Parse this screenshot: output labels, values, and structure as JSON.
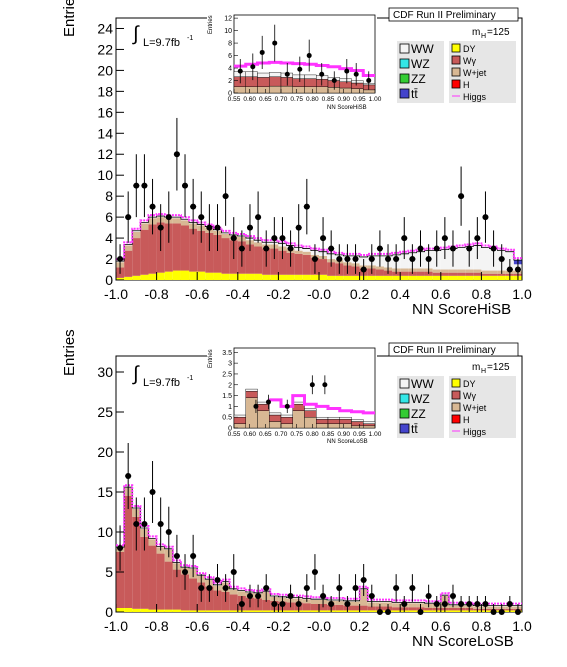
{
  "chart_data": [
    {
      "type": "bar",
      "title": "CDF Run II Preliminary",
      "xlabel": "NN ScoreHiSB",
      "ylabel": "Entries",
      "xlim": [
        -1.0,
        1.0
      ],
      "ylim": [
        0,
        25
      ],
      "yticks": [
        0,
        2,
        4,
        6,
        8,
        10,
        12,
        14,
        16,
        18,
        20,
        22,
        24
      ],
      "xticks": [
        -1.0,
        -0.8,
        -0.6,
        -0.4,
        -0.2,
        -0.0,
        0.2,
        0.4,
        0.6,
        0.8,
        1.0
      ],
      "xtick_labels": [
        "-1.0",
        "-0.8",
        "-0.6",
        "-0.4",
        "-0.2",
        "-0.0",
        "0.2",
        "0.4",
        "0.6",
        "0.8",
        "1.0"
      ],
      "lumi_label": "L=9.7fb",
      "lumi_sup": "-1",
      "mass_label": "m",
      "mass_sub": "H",
      "mass_value": "=125",
      "legend_position": "top-right",
      "legend": [
        {
          "name": "WW",
          "color": "#f4f4f4"
        },
        {
          "name": "WZ",
          "color": "#33e6e6"
        },
        {
          "name": "ZZ",
          "color": "#33cc33"
        },
        {
          "name": "tt̄",
          "color": "#4444cc"
        },
        {
          "name": "DY",
          "color": "#ffff00"
        },
        {
          "name": "Wγ",
          "color": "#c85a5a"
        },
        {
          "name": "W+jet",
          "color": "#d8b894"
        },
        {
          "name": "H",
          "color": "#ff0000"
        },
        {
          "name": "Higgs",
          "color": "#ff33ff"
        }
      ],
      "bin_edges": [
        -1.0,
        0.9625
      ],
      "bin_width": 0.04,
      "stack_colors": {
        "dy": "#ffff00",
        "wg": "#c85a5a",
        "wjet": "#d8b894",
        "ww": "#f4f4f4",
        "tt": "#4444cc"
      },
      "series": [
        {
          "name": "DY",
          "values": [
            0.2,
            0.3,
            0.4,
            0.5,
            0.6,
            0.7,
            0.8,
            0.9,
            0.9,
            0.8,
            0.8,
            0.7,
            0.7,
            0.6,
            0.6,
            0.6,
            0.6,
            0.6,
            0.5,
            0.5,
            0.5,
            0.5,
            0.5,
            0.5,
            0.5,
            0.5,
            0.4,
            0.4,
            0.4,
            0.4,
            0.4,
            0.4,
            0.4,
            0.4,
            0.4,
            0.4,
            0.4,
            0.4,
            0.4,
            0.4,
            0.4,
            0.4,
            0.4,
            0.4,
            0.4,
            0.4,
            0.4,
            0.4,
            0.4,
            0.4
          ]
        },
        {
          "name": "Wγ",
          "values": [
            1.0,
            2.5,
            3.6,
            4.3,
            4.7,
            4.8,
            4.6,
            4.5,
            4.3,
            4.1,
            3.9,
            3.8,
            3.6,
            3.4,
            3.2,
            3.1,
            2.8,
            2.6,
            2.5,
            2.5,
            2.3,
            2.1,
            2.0,
            1.9,
            1.6,
            1.5,
            1.3,
            1.2,
            1.0,
            0.9,
            0.7,
            0.7,
            0.6,
            0.5,
            0.4,
            0.4,
            0.4,
            0.4,
            0.4,
            0.3,
            0.3,
            0.3,
            0.3,
            0.3,
            0.3,
            0.2,
            0.2,
            0.2,
            0.2,
            0.2
          ]
        },
        {
          "name": "W+jet",
          "values": [
            0.5,
            0.5,
            0.6,
            0.6,
            0.6,
            0.5,
            0.5,
            0.5,
            0.5,
            0.5,
            0.5,
            0.5,
            0.4,
            0.4,
            0.4,
            0.4,
            0.4,
            0.4,
            0.4,
            0.4,
            0.4,
            0.4,
            0.3,
            0.3,
            0.3,
            0.3,
            0.3,
            0.3,
            0.3,
            0.3,
            0.3,
            0.3,
            0.3,
            0.3,
            0.3,
            0.3,
            0.3,
            0.3,
            0.3,
            0.3,
            0.3,
            0.3,
            0.3,
            0.3,
            0.3,
            0.3,
            0.3,
            0.3,
            0.3,
            0.3
          ]
        },
        {
          "name": "WW",
          "values": [
            0.1,
            0.1,
            0.1,
            0.1,
            0.1,
            0.1,
            0.1,
            0.1,
            0.1,
            0.1,
            0.1,
            0.1,
            0.1,
            0.1,
            0.1,
            0.1,
            0.2,
            0.2,
            0.2,
            0.2,
            0.3,
            0.3,
            0.3,
            0.3,
            0.4,
            0.4,
            0.5,
            0.5,
            0.6,
            0.7,
            0.8,
            0.9,
            1.0,
            1.1,
            1.3,
            1.4,
            1.5,
            1.6,
            1.7,
            1.8,
            1.9,
            2.0,
            2.1,
            2.2,
            2.3,
            2.2,
            2.1,
            1.9,
            1.8,
            0.6
          ]
        },
        {
          "name": "tt̄",
          "values": [
            0,
            0,
            0,
            0,
            0,
            0,
            0,
            0,
            0,
            0,
            0,
            0,
            0,
            0,
            0,
            0,
            0,
            0,
            0,
            0,
            0,
            0,
            0,
            0,
            0,
            0,
            0,
            0,
            0,
            0,
            0,
            0,
            0,
            0,
            0,
            0,
            0,
            0,
            0,
            0,
            0,
            0,
            0,
            0,
            0,
            0,
            0,
            0,
            0,
            0.4
          ]
        }
      ],
      "data_points": {
        "x": [
          -0.98,
          -0.94,
          -0.9,
          -0.86,
          -0.82,
          -0.78,
          -0.74,
          -0.7,
          -0.66,
          -0.62,
          -0.58,
          -0.54,
          -0.5,
          -0.46,
          -0.42,
          -0.38,
          -0.34,
          -0.3,
          -0.26,
          -0.22,
          -0.18,
          -0.14,
          -0.1,
          -0.06,
          -0.02,
          0.02,
          0.06,
          0.1,
          0.14,
          0.18,
          0.22,
          0.26,
          0.3,
          0.34,
          0.38,
          0.42,
          0.46,
          0.5,
          0.54,
          0.58,
          0.62,
          0.66,
          0.7,
          0.74,
          0.78,
          0.82,
          0.86,
          0.9,
          0.94,
          0.98
        ],
        "y": [
          2,
          6,
          9,
          9,
          7,
          5,
          6,
          12,
          9,
          7,
          6,
          5,
          5,
          8,
          4,
          3,
          5,
          6,
          3,
          4,
          4,
          3,
          5,
          7,
          2,
          4,
          3,
          2,
          2,
          2,
          1,
          2,
          3,
          2,
          2,
          4,
          2,
          3,
          2,
          3,
          4,
          3,
          8,
          3,
          4,
          6,
          3,
          2,
          1,
          1
        ]
      },
      "inset": {
        "xlabel": "NN ScoreHiSB",
        "ylabel": "Entries",
        "xlim": [
          0.55,
          1.0
        ],
        "ylim": [
          0,
          12.5
        ],
        "yticks": [
          0,
          2,
          4,
          6,
          8,
          10,
          12
        ],
        "xticks": [
          0.55,
          0.6,
          0.65,
          0.7,
          0.75,
          0.8,
          0.85,
          0.9,
          0.95,
          1.0
        ],
        "xtick_labels": [
          "0.55",
          "0.60",
          "0.65",
          "0.70",
          "0.75",
          "0.80",
          "0.85",
          "0.90",
          "0.95",
          "1.00"
        ],
        "bin_width": 0.0375,
        "stack": [
          {
            "name": "W+jet",
            "values": [
              1.0,
              1.0,
              1.0,
              1.1,
              1.1,
              1.0,
              1.0,
              1.0,
              0.9,
              0.8,
              0.7,
              0.5
            ]
          },
          {
            "name": "Wγ",
            "values": [
              1.6,
              1.6,
              1.5,
              1.5,
              1.4,
              1.3,
              1.3,
              1.2,
              1.1,
              1.0,
              0.9,
              0.8
            ]
          },
          {
            "name": "WW",
            "values": [
              0.8,
              0.8,
              0.7,
              0.7,
              0.7,
              0.6,
              0.6,
              0.6,
              0.5,
              0.5,
              0.4,
              0.2
            ]
          }
        ],
        "higgs": [
          4.3,
          4.6,
          4.8,
          4.9,
          4.8,
          4.7,
          4.6,
          4.4,
          4.2,
          3.9,
          3.6,
          2.8
        ],
        "data_points": {
          "x": [
            0.57,
            0.61,
            0.64,
            0.68,
            0.72,
            0.76,
            0.79,
            0.83,
            0.87,
            0.91,
            0.94,
            0.98
          ],
          "y": [
            3.5,
            4.2,
            6.5,
            8,
            3,
            3.8,
            6,
            3,
            2,
            3.5,
            3,
            2
          ]
        }
      }
    },
    {
      "type": "bar",
      "title": "CDF Run II Preliminary",
      "xlabel": "NN ScoreLoSB",
      "ylabel": "Entries",
      "xlim": [
        -1.0,
        1.0
      ],
      "ylim": [
        0,
        32
      ],
      "yticks": [
        0,
        5,
        10,
        15,
        20,
        25,
        30
      ],
      "xticks": [
        -1.0,
        -0.8,
        -0.6,
        -0.4,
        -0.2,
        -0.0,
        0.2,
        0.4,
        0.6,
        0.8,
        1.0
      ],
      "xtick_labels": [
        "-1.0",
        "-0.8",
        "-0.6",
        "-0.4",
        "-0.2",
        "-0.0",
        "0.2",
        "0.4",
        "0.6",
        "0.8",
        "1.0"
      ],
      "lumi_label": "L=9.7fb",
      "lumi_sup": "-1",
      "mass_label": "m",
      "mass_sub": "H",
      "mass_value": "=125",
      "legend_position": "top-right",
      "legend": [
        {
          "name": "WW",
          "color": "#f4f4f4"
        },
        {
          "name": "WZ",
          "color": "#33e6e6"
        },
        {
          "name": "ZZ",
          "color": "#33cc33"
        },
        {
          "name": "tt̄",
          "color": "#4444cc"
        },
        {
          "name": "DY",
          "color": "#ffff00"
        },
        {
          "name": "Wγ",
          "color": "#c85a5a"
        },
        {
          "name": "W+jet",
          "color": "#d8b894"
        },
        {
          "name": "H",
          "color": "#ff0000"
        },
        {
          "name": "Higgs",
          "color": "#ff33ff"
        }
      ],
      "bin_edges": [
        -1.0,
        0.9625
      ],
      "bin_width": 0.04,
      "stack_colors": {
        "dy": "#ffff00",
        "wg": "#c85a5a",
        "wjet": "#d8b894",
        "ww": "#f4f4f4",
        "tt": "#4444cc"
      },
      "series": [
        {
          "name": "DY",
          "values": [
            0.5,
            0.5,
            0.4,
            0.4,
            0.3,
            0.3,
            0.3,
            0.3,
            0.2,
            0.2,
            0.2,
            0.2,
            0.2,
            0.2,
            0.2,
            0.2,
            0.2,
            0.2,
            0.2,
            0.2,
            0.2,
            0.2,
            0.2,
            0.2,
            0.2,
            0.2,
            0.2,
            0.2,
            0.2,
            0.2,
            0.2,
            0.2,
            0.2,
            0.2,
            0.2,
            0.2,
            0.2,
            0.2,
            0.2,
            0.2,
            0.2,
            0.2,
            0.2,
            0.2,
            0.2,
            0.2,
            0.2,
            0.2,
            0.2,
            0.2
          ]
        },
        {
          "name": "Wγ",
          "values": [
            7.0,
            14.0,
            11.5,
            9.0,
            8.0,
            7.0,
            6.0,
            5.0,
            4.5,
            4.0,
            3.5,
            3.0,
            2.5,
            2.3,
            2.0,
            1.8,
            1.6,
            1.5,
            1.3,
            1.2,
            1.1,
            1.0,
            1.0,
            0.9,
            0.8,
            0.8,
            0.7,
            0.7,
            0.6,
            0.6,
            0.6,
            0.5,
            0.5,
            0.5,
            0.4,
            0.4,
            0.4,
            0.4,
            0.3,
            0.3,
            0.3,
            0.3,
            0.3,
            0.3,
            0.2,
            0.2,
            0.2,
            0.2,
            0.2,
            0.2
          ]
        },
        {
          "name": "W+jet",
          "values": [
            0.5,
            1.0,
            1.0,
            1.0,
            0.8,
            0.8,
            1.5,
            0.8,
            0.8,
            1.2,
            0.8,
            0.8,
            0.6,
            1.2,
            0.6,
            0.6,
            0.6,
            0.6,
            1.0,
            0.5,
            0.5,
            0.5,
            0.5,
            0.5,
            0.5,
            0.5,
            0.5,
            0.5,
            0.5,
            0.5,
            2.0,
            0.5,
            0.5,
            0.5,
            0.5,
            0.5,
            0.5,
            0.5,
            0.5,
            0.5,
            1.5,
            0.3,
            0.3,
            0.3,
            0.3,
            0.3,
            0.3,
            0.3,
            0.3,
            0.3
          ]
        },
        {
          "name": "WW",
          "values": [
            0.1,
            0.1,
            0.1,
            0.1,
            0.1,
            0.1,
            0.1,
            0.1,
            0.1,
            0.1,
            0.1,
            0.1,
            0.1,
            0.1,
            0.1,
            0.1,
            0.1,
            0.1,
            0.1,
            0.1,
            0.1,
            0.1,
            0.1,
            0.1,
            0.1,
            0.1,
            0.1,
            0.1,
            0.1,
            0.1,
            0.1,
            0.1,
            0.1,
            0.1,
            0.1,
            0.1,
            0.1,
            0.1,
            0.1,
            0.1,
            0.1,
            0.1,
            0.1,
            0.1,
            0.1,
            0.1,
            0.1,
            0.1,
            0.1,
            0.1
          ]
        }
      ],
      "data_points": {
        "x": [
          -0.98,
          -0.94,
          -0.9,
          -0.86,
          -0.82,
          -0.78,
          -0.74,
          -0.7,
          -0.66,
          -0.62,
          -0.58,
          -0.54,
          -0.5,
          -0.46,
          -0.42,
          -0.38,
          -0.34,
          -0.3,
          -0.26,
          -0.22,
          -0.18,
          -0.14,
          -0.1,
          -0.06,
          -0.02,
          0.02,
          0.06,
          0.1,
          0.14,
          0.18,
          0.22,
          0.26,
          0.3,
          0.34,
          0.38,
          0.42,
          0.46,
          0.5,
          0.54,
          0.58,
          0.62,
          0.66,
          0.7,
          0.74,
          0.78,
          0.82,
          0.86,
          0.9,
          0.94,
          0.98
        ],
        "y": [
          8,
          17,
          11,
          11,
          15,
          11,
          10,
          7,
          5,
          7,
          3,
          3,
          4,
          3,
          5,
          1,
          2,
          2,
          3,
          1,
          1,
          2,
          1,
          3,
          5,
          2,
          1,
          3,
          1,
          3,
          4,
          2,
          0,
          0,
          3,
          1,
          3,
          0,
          2,
          1,
          1,
          2,
          1,
          1,
          1,
          1,
          0,
          0,
          1,
          0
        ]
      },
      "inset": {
        "xlabel": "NN ScoreLoSB",
        "ylabel": "Entries",
        "xlim": [
          0.55,
          1.0
        ],
        "ylim": [
          0,
          3.7
        ],
        "yticks": [
          0,
          0.5,
          1,
          1.5,
          2,
          2.5,
          3,
          3.5
        ],
        "xticks": [
          0.55,
          0.6,
          0.65,
          0.7,
          0.75,
          0.8,
          0.85,
          0.9,
          0.95,
          1.0
        ],
        "xtick_labels": [
          "0.55",
          "0.60",
          "0.65",
          "0.70",
          "0.75",
          "0.80",
          "0.85",
          "0.90",
          "0.95",
          "1.00"
        ],
        "bin_width": 0.0375,
        "stack": [
          {
            "name": "W+jet",
            "values": [
              0.2,
              1.4,
              0.8,
              0.3,
              0.2,
              0.8,
              0.5,
              0.2,
              0.2,
              0.2,
              0.1,
              0.1
            ]
          },
          {
            "name": "Wγ",
            "values": [
              0.3,
              0.3,
              0.3,
              0.3,
              0.3,
              0.3,
              0.3,
              0.2,
              0.2,
              0.2,
              0.2,
              0.1
            ]
          },
          {
            "name": "WW",
            "values": [
              0.1,
              0.1,
              0.1,
              0.1,
              0.1,
              0.1,
              0.1,
              0.1,
              0.1,
              0.1,
              0.1,
              0.1
            ]
          }
        ],
        "higgs": [
          0,
          0,
          0,
          1.3,
          1.0,
          1.5,
          1.1,
          1.0,
          0.9,
          0.8,
          0.75,
          0.7
        ],
        "data_points": {
          "x": [
            0.62,
            0.66,
            0.72,
            0.8,
            0.84
          ],
          "y": [
            1.0,
            1.2,
            1.0,
            2.0,
            2.0
          ]
        }
      }
    }
  ]
}
